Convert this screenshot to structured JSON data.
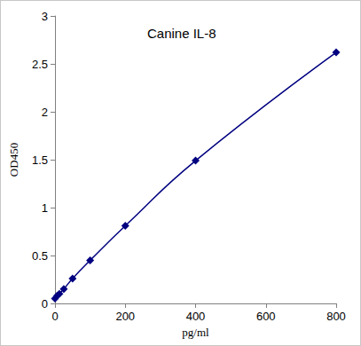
{
  "chart_data": {
    "type": "line",
    "title": "Canine IL-8",
    "x_label": "pg/ml",
    "y_label": "OD450",
    "x": [
      0,
      6.25,
      12.5,
      25,
      50,
      100,
      200,
      400,
      800
    ],
    "values": [
      0.05,
      0.08,
      0.1,
      0.15,
      0.26,
      0.45,
      0.81,
      1.49,
      2.62
    ],
    "color": "#000080",
    "marker": "diamond",
    "line_style": "solid",
    "xlim": [
      0,
      800
    ],
    "xticks": [
      0,
      200,
      400,
      600,
      800
    ],
    "ylim": [
      0,
      3
    ],
    "yticks": [
      0,
      0.5,
      1,
      1.5,
      2,
      2.5,
      3
    ],
    "grid": false
  }
}
